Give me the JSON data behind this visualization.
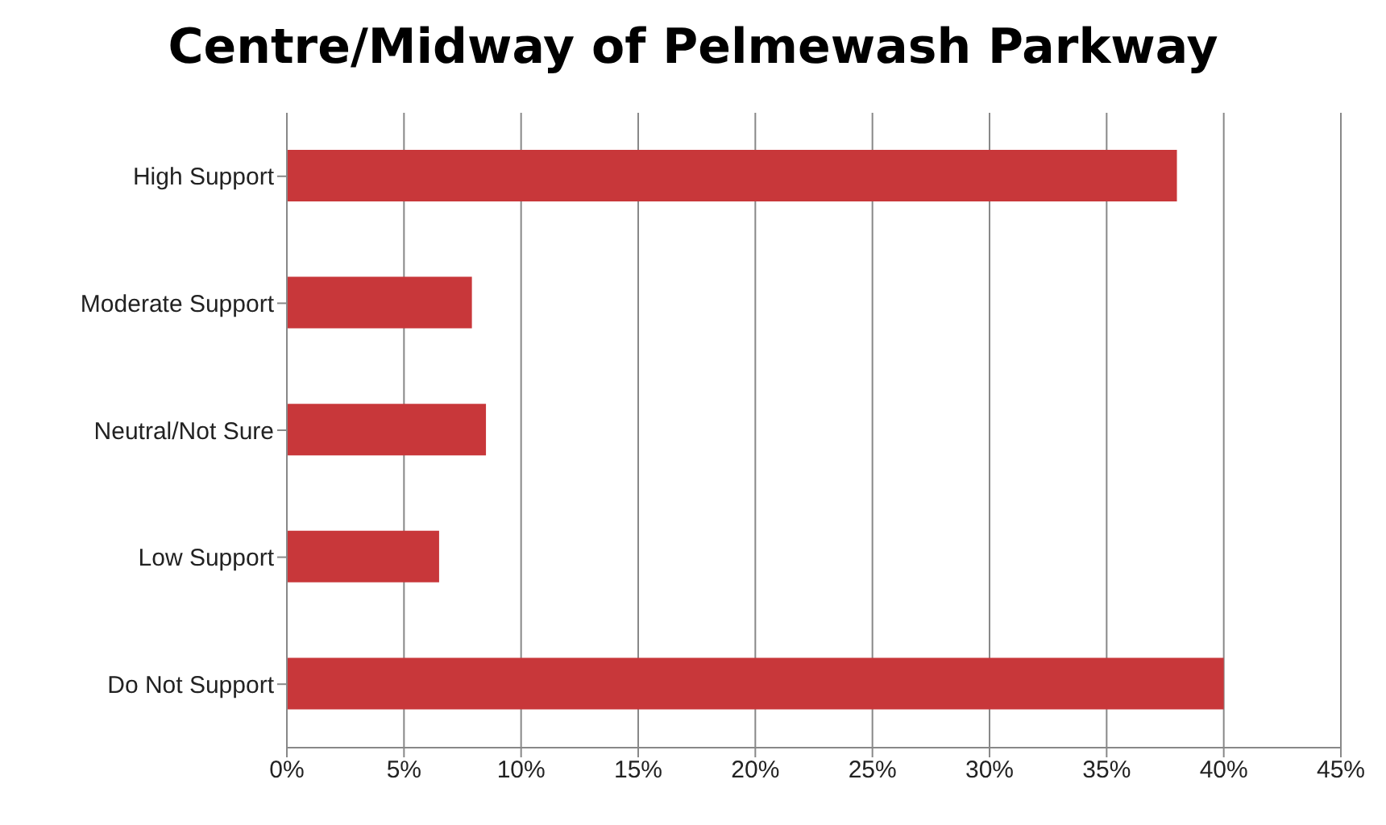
{
  "chart_data": {
    "type": "bar",
    "orientation": "horizontal",
    "title": "Centre/Midway of Pelmewash Parkway",
    "categories": [
      "High Support",
      "Moderate Support",
      "Neutral/Not Sure",
      "Low Support",
      "Do Not Support"
    ],
    "values": [
      38,
      7.9,
      8.5,
      6.5,
      40
    ],
    "color": "#c8373a",
    "xlim": [
      0,
      45
    ],
    "xticks": [
      {
        "value": 0,
        "label": "0%"
      },
      {
        "value": 5,
        "label": "5%"
      },
      {
        "value": 10,
        "label": "10%"
      },
      {
        "value": 15,
        "label": "15%"
      },
      {
        "value": 20,
        "label": "20%"
      },
      {
        "value": 25,
        "label": "25%"
      },
      {
        "value": 30,
        "label": "30%"
      },
      {
        "value": 35,
        "label": "35%"
      },
      {
        "value": 40,
        "label": "40%"
      },
      {
        "value": 45,
        "label": "45%"
      }
    ],
    "grid": "x"
  }
}
